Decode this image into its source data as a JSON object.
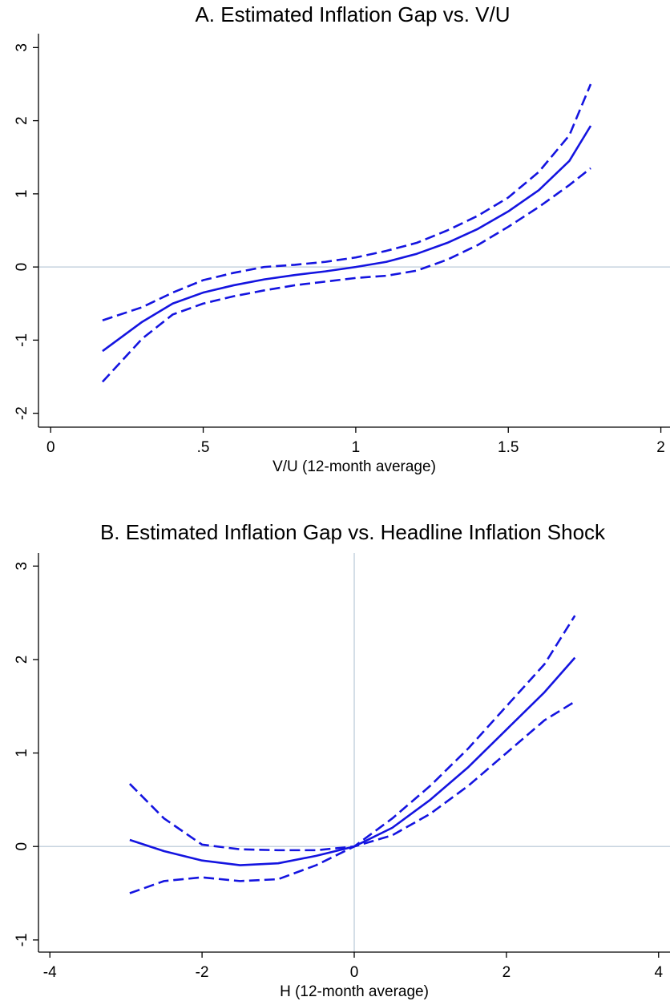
{
  "chart_data": [
    {
      "type": "line",
      "title": "A. Estimated Inflation Gap vs. V/U",
      "x_label": "V/U (12-month average)",
      "x": [
        0.17,
        0.3,
        0.4,
        0.5,
        0.6,
        0.7,
        0.8,
        0.9,
        1.0,
        1.1,
        1.2,
        1.3,
        1.4,
        1.5,
        1.6,
        1.7,
        1.77
      ],
      "series": [
        {
          "color": "#1414e0",
          "dash": "dashed",
          "values": [
            -0.73,
            -0.55,
            -0.35,
            -0.18,
            -0.08,
            0,
            0.03,
            0.07,
            0.13,
            0.22,
            0.33,
            0.5,
            0.7,
            0.95,
            1.3,
            1.8,
            2.5
          ]
        },
        {
          "color": "#1414e0",
          "dash": "solid",
          "values": [
            -1.15,
            -0.75,
            -0.5,
            -0.35,
            -0.25,
            -0.17,
            -0.11,
            -0.06,
            0,
            0.07,
            0.18,
            0.33,
            0.52,
            0.76,
            1.05,
            1.45,
            1.93
          ]
        },
        {
          "color": "#1414e0",
          "dash": "dashed",
          "values": [
            -1.57,
            -0.98,
            -0.65,
            -0.5,
            -0.4,
            -0.32,
            -0.25,
            -0.2,
            -0.15,
            -0.12,
            -0.05,
            0.1,
            0.3,
            0.55,
            0.82,
            1.12,
            1.35
          ]
        }
      ],
      "xlim": [
        -0.04,
        2.03
      ],
      "ylim": [
        -2.19,
        3.19
      ],
      "xticks": [
        0,
        {
          "value": 0.5,
          "label": ".5"
        },
        1,
        1.5,
        2
      ],
      "yticks": [
        -2,
        -1,
        0,
        1,
        2,
        3
      ],
      "refline_y": 0
    },
    {
      "type": "line",
      "title": "B. Estimated Inflation Gap vs. Headline Inflation Shock",
      "x_label": "H (12-month average)",
      "x": [
        -2.95,
        -2.5,
        -2,
        -1.5,
        -1,
        -0.5,
        0,
        0.5,
        1,
        1.5,
        2,
        2.5,
        2.9
      ],
      "series": [
        {
          "color": "#1414e0",
          "dash": "dashed",
          "values": [
            0.67,
            0.3,
            0.02,
            -0.03,
            -0.04,
            -0.04,
            0,
            0.3,
            0.65,
            1.05,
            1.5,
            1.95,
            2.47
          ]
        },
        {
          "color": "#1414e0",
          "dash": "solid",
          "values": [
            0.07,
            -0.05,
            -0.15,
            -0.2,
            -0.18,
            -0.1,
            0,
            0.2,
            0.5,
            0.85,
            1.25,
            1.65,
            2.02
          ]
        },
        {
          "color": "#1414e0",
          "dash": "dashed",
          "values": [
            -0.5,
            -0.37,
            -0.33,
            -0.37,
            -0.35,
            -0.2,
            0,
            0.12,
            0.35,
            0.65,
            1.0,
            1.35,
            1.55
          ]
        }
      ],
      "xlim": [
        -4.15,
        4.15
      ],
      "ylim": [
        -1.13,
        3.14
      ],
      "xticks": [
        -4,
        -2,
        0,
        2,
        4
      ],
      "yticks": [
        -1,
        0,
        1,
        2,
        3
      ],
      "refline_y": 0,
      "refline_x": 0
    }
  ]
}
